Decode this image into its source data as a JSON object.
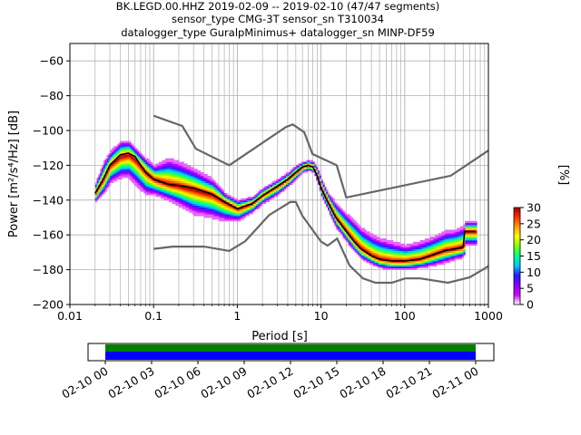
{
  "chart_data": {
    "type": "heatmap",
    "title": [
      "BK.LEGD.00.HHZ   2019-02-09 -- 2019-02-10  (47/47 segments)",
      "sensor_type CMG-3T sensor_sn T310034",
      "datalogger_type GuralpMinimus+ datalogger_sn MINP-DF59"
    ],
    "xlabel": "Period [s]",
    "ylabel": "Power [m²/s⁴/Hz] [dB]",
    "x_scale": "log",
    "xlim": [
      0.01,
      1000
    ],
    "ylim": [
      -200,
      -50
    ],
    "x_ticks": [
      {
        "value": 0.01,
        "label": "0.01"
      },
      {
        "value": 0.1,
        "label": "0.1"
      },
      {
        "value": 1,
        "label": "1"
      },
      {
        "value": 10,
        "label": "10"
      },
      {
        "value": 100,
        "label": "100"
      },
      {
        "value": 1000,
        "label": "1000"
      }
    ],
    "y_ticks": [
      {
        "value": -60,
        "label": "−60"
      },
      {
        "value": -80,
        "label": "−80"
      },
      {
        "value": -100,
        "label": "−100"
      },
      {
        "value": -120,
        "label": "−120"
      },
      {
        "value": -140,
        "label": "−140"
      },
      {
        "value": -160,
        "label": "−160"
      },
      {
        "value": -180,
        "label": "−180"
      },
      {
        "value": -200,
        "label": "−200"
      }
    ],
    "grid": true,
    "noise_models": [
      {
        "id": "nhnm",
        "points": [
          [
            0.1,
            -91.5
          ],
          [
            0.22,
            -97.4
          ],
          [
            0.32,
            -110.5
          ],
          [
            0.8,
            -120
          ],
          [
            3.8,
            -98
          ],
          [
            4.6,
            -96.5
          ],
          [
            6.3,
            -101
          ],
          [
            7.9,
            -113.5
          ],
          [
            15.4,
            -120
          ],
          [
            20,
            -138.5
          ],
          [
            354.8,
            -126
          ],
          [
            1000,
            -111.5
          ]
        ]
      },
      {
        "id": "nlnm",
        "points": [
          [
            0.1,
            -168
          ],
          [
            0.17,
            -166.7
          ],
          [
            0.4,
            -166.7
          ],
          [
            0.8,
            -169.2
          ],
          [
            1.24,
            -163.7
          ],
          [
            2.4,
            -148.6
          ],
          [
            4.3,
            -141.1
          ],
          [
            5,
            -141.1
          ],
          [
            6,
            -149
          ],
          [
            10,
            -163.8
          ],
          [
            12,
            -166.2
          ],
          [
            15.6,
            -162.1
          ],
          [
            21.9,
            -177.5
          ],
          [
            31.6,
            -185
          ],
          [
            45,
            -187.5
          ],
          [
            70,
            -187.5
          ],
          [
            101,
            -185
          ],
          [
            154,
            -185
          ],
          [
            328,
            -187.5
          ],
          [
            600,
            -184.4
          ],
          [
            1000,
            -178
          ]
        ]
      }
    ],
    "mean_curve": [
      [
        0.02,
        -136
      ],
      [
        0.025,
        -128
      ],
      [
        0.03,
        -120
      ],
      [
        0.04,
        -114
      ],
      [
        0.05,
        -113
      ],
      [
        0.06,
        -115
      ],
      [
        0.08,
        -124
      ],
      [
        0.1,
        -128
      ],
      [
        0.15,
        -131
      ],
      [
        0.2,
        -131.5
      ],
      [
        0.3,
        -133
      ],
      [
        0.5,
        -136.5
      ],
      [
        0.7,
        -141
      ],
      [
        1,
        -145
      ],
      [
        1.5,
        -142
      ],
      [
        2,
        -137.5
      ],
      [
        3,
        -132
      ],
      [
        4,
        -128
      ],
      [
        5,
        -124
      ],
      [
        6,
        -121
      ],
      [
        7,
        -120
      ],
      [
        8,
        -121
      ],
      [
        9,
        -126
      ],
      [
        10,
        -133
      ],
      [
        12,
        -141
      ],
      [
        15,
        -150
      ],
      [
        20,
        -158
      ],
      [
        25,
        -164
      ],
      [
        30,
        -168
      ],
      [
        40,
        -172
      ],
      [
        50,
        -174
      ],
      [
        70,
        -175
      ],
      [
        100,
        -175
      ],
      [
        150,
        -174
      ],
      [
        200,
        -172
      ],
      [
        300,
        -169
      ],
      [
        400,
        -168
      ],
      [
        500,
        -167
      ],
      [
        520,
        -158
      ],
      [
        700,
        -158
      ]
    ],
    "ppsd_columns": [
      {
        "period": 0.02,
        "low": -141,
        "high": -130,
        "mode": -136
      },
      {
        "period": 0.025,
        "low": -136,
        "high": -118,
        "mode": -128
      },
      {
        "period": 0.03,
        "low": -130,
        "high": -112,
        "mode": -120
      },
      {
        "period": 0.04,
        "low": -127,
        "high": -106,
        "mode": -115
      },
      {
        "period": 0.05,
        "low": -127,
        "high": -106,
        "mode": -114
      },
      {
        "period": 0.06,
        "low": -131,
        "high": -110,
        "mode": -117
      },
      {
        "period": 0.08,
        "low": -137,
        "high": -116,
        "mode": -124
      },
      {
        "period": 0.1,
        "low": -137,
        "high": -120,
        "mode": -128
      },
      {
        "period": 0.15,
        "low": -140,
        "high": -116,
        "mode": -131
      },
      {
        "period": 0.2,
        "low": -143,
        "high": -118,
        "mode": -132
      },
      {
        "period": 0.3,
        "low": -148,
        "high": -122,
        "mode": -134
      },
      {
        "period": 0.5,
        "low": -150,
        "high": -128,
        "mode": -137
      },
      {
        "period": 0.7,
        "low": -152,
        "high": -136,
        "mode": -141
      },
      {
        "period": 1,
        "low": -152,
        "high": -140,
        "mode": -145
      },
      {
        "period": 1.5,
        "low": -147,
        "high": -138,
        "mode": -142
      },
      {
        "period": 2,
        "low": -142,
        "high": -133,
        "mode": -137
      },
      {
        "period": 3,
        "low": -137,
        "high": -128,
        "mode": -132
      },
      {
        "period": 4,
        "low": -132,
        "high": -124,
        "mode": -128
      },
      {
        "period": 5,
        "low": -128,
        "high": -120,
        "mode": -124
      },
      {
        "period": 6,
        "low": -124,
        "high": -118,
        "mode": -121
      },
      {
        "period": 7,
        "low": -123,
        "high": -117,
        "mode": -120
      },
      {
        "period": 8,
        "low": -124,
        "high": -118,
        "mode": -121
      },
      {
        "period": 9,
        "low": -130,
        "high": -122,
        "mode": -126
      },
      {
        "period": 10,
        "low": -138,
        "high": -128,
        "mode": -133
      },
      {
        "period": 12,
        "low": -146,
        "high": -136,
        "mode": -141
      },
      {
        "period": 15,
        "low": -156,
        "high": -142,
        "mode": -150
      },
      {
        "period": 20,
        "low": -164,
        "high": -148,
        "mode": -158
      },
      {
        "period": 25,
        "low": -170,
        "high": -152,
        "mode": -164
      },
      {
        "period": 30,
        "low": -174,
        "high": -156,
        "mode": -168
      },
      {
        "period": 40,
        "low": -177,
        "high": -160,
        "mode": -172
      },
      {
        "period": 50,
        "low": -179,
        "high": -162,
        "mode": -174
      },
      {
        "period": 70,
        "low": -180,
        "high": -164,
        "mode": -175
      },
      {
        "period": 100,
        "low": -180,
        "high": -166,
        "mode": -175
      },
      {
        "period": 150,
        "low": -179,
        "high": -164,
        "mode": -174
      },
      {
        "period": 200,
        "low": -178,
        "high": -162,
        "mode": -172
      },
      {
        "period": 300,
        "low": -176,
        "high": -158,
        "mode": -169
      },
      {
        "period": 400,
        "low": -174,
        "high": -157,
        "mode": -168
      },
      {
        "period": 500,
        "low": -173,
        "high": -155,
        "mode": -167
      },
      {
        "period": 520,
        "low": -166,
        "high": -152,
        "mode": -158
      },
      {
        "period": 700,
        "low": -166,
        "high": -152,
        "mode": -158
      }
    ],
    "colorbar": {
      "label": "[%]",
      "min": 0,
      "max": 30,
      "ticks": [
        {
          "value": 0,
          "label": "0"
        },
        {
          "value": 5,
          "label": "5"
        },
        {
          "value": 10,
          "label": "10"
        },
        {
          "value": 15,
          "label": "15"
        },
        {
          "value": 20,
          "label": "20"
        },
        {
          "value": 25,
          "label": "25"
        },
        {
          "value": 30,
          "label": "30"
        }
      ],
      "colors": [
        "#ffffff",
        "#d000ff",
        "#8a00ff",
        "#2020ff",
        "#00c8ff",
        "#00ff90",
        "#7fff00",
        "#ffff00",
        "#ffa000",
        "#ff3000",
        "#a00000"
      ]
    },
    "coverage": {
      "ticks": [
        "02-10 00",
        "02-10 03",
        "02-10 06",
        "02-10 09",
        "02-10 12",
        "02-10 15",
        "02-10 18",
        "02-10 21",
        "02-11 00"
      ],
      "covered_start": "02-10 00",
      "covered_end": "02-11 00",
      "colors": {
        "top": "#008000",
        "bottom": "#0000ff"
      }
    }
  }
}
